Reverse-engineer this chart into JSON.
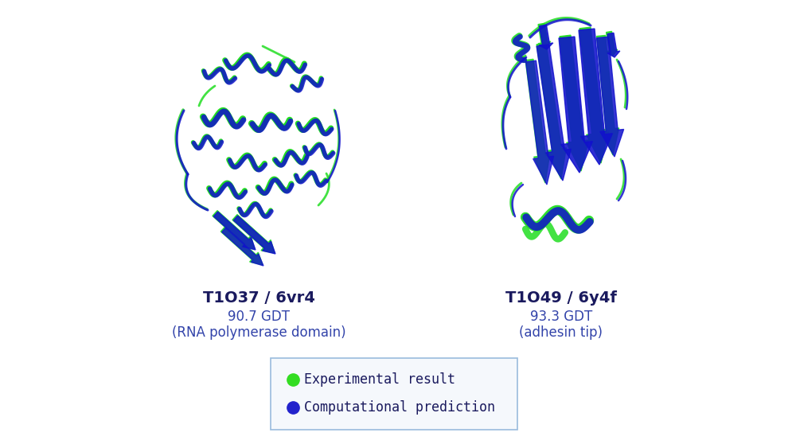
{
  "background_color": "#ffffff",
  "title1": "T1O37 / 6vr4",
  "subtitle1": "90.7 GDT",
  "subsubtitle1": "(RNA polymerase domain)",
  "title2": "T1O49 / 6y4f",
  "subtitle2": "93.3 GDT",
  "subsubtitle2": "(adhesin tip)",
  "legend_label1": "Experimental result",
  "legend_label2": "Computational prediction",
  "legend_color1": "#33dd22",
  "legend_color2": "#2222cc",
  "legend_border_color": "#99bbdd",
  "title_color": "#1a1a5e",
  "subtitle_color": "#3344aa",
  "text_fontsize_title": 14,
  "text_fontsize_sub": 12,
  "legend_fontsize": 12,
  "green_color": "#22dd22",
  "blue_color": "#1111cc",
  "blue_stipple": "#4444ee"
}
